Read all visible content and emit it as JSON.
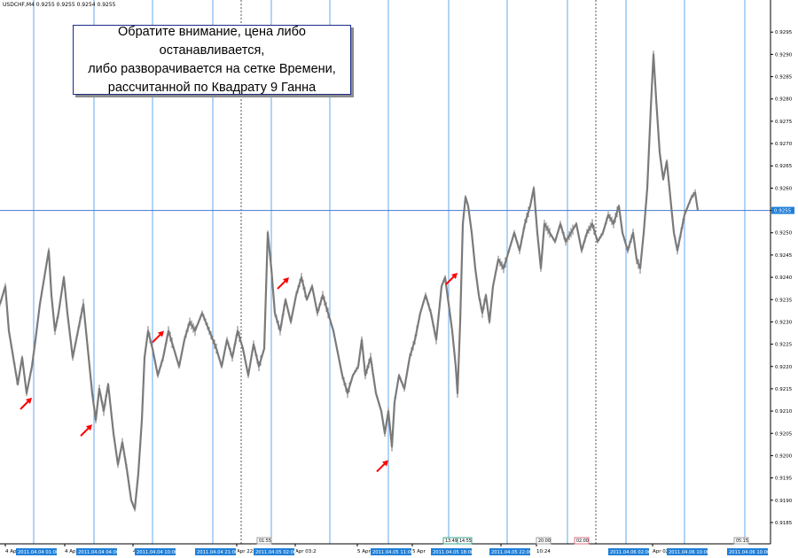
{
  "symbol_header": "USDCHF,M4 0.9255 0.9255 0.9254 0.9255",
  "annotation": {
    "text": "Обратите внимание, цена либо останавливается,\nлибо разворачивается на сетке Времени,\nрассчитанной по Квадрату 9 Ганна"
  },
  "colors": {
    "price_line": "#7a7a7a",
    "time_grid_line": "#66aaee",
    "current_price_line": "#4477cc",
    "day_separator": "#555555",
    "arrow": "#ff0000",
    "axis_label_bg": "#1f7fd8"
  },
  "chart_data": {
    "type": "line",
    "title": "",
    "ylim": [
      0.9183,
      0.9302
    ],
    "y_ticks": [
      "0.9295",
      "0.9290",
      "0.9285",
      "0.9280",
      "0.9275",
      "0.9270",
      "0.9265",
      "0.9260",
      "0.9255",
      "0.9250",
      "0.9245",
      "0.9240",
      "0.9235",
      "0.9230",
      "0.9225",
      "0.9220",
      "0.9215",
      "0.9210",
      "0.9205",
      "0.9200",
      "0.9195",
      "0.9190",
      "0.9185"
    ],
    "current_price": "0.9255",
    "x_ticks": [
      "4 Apr",
      "4 Apr 04:24",
      "4 Apr 09:00",
      "Apr 22:56",
      "Apr 03:2",
      "5 Apr 08:00",
      "5 Apr",
      "5 A",
      "10:24",
      "Apr 02:56"
    ],
    "time_grid_labels": [
      "2011.04.04 01:00",
      "2011.04.04 04:00",
      "2011.04.04 10:00",
      "2011.04.04 21:00",
      "2011.04.05 02:00",
      "2011.04.05 11:00",
      "2011.04.05 18:00",
      "2011.04.05 22:00",
      "2011.04.06 02:00",
      "2011.04.06 10:00",
      "2011.04.06 10:00"
    ],
    "time_grid_x": [
      38,
      106,
      172,
      240,
      306,
      372,
      438,
      506,
      572,
      640,
      706,
      772,
      840
    ],
    "day_separator_x": [
      272,
      672
    ],
    "time_markers": [
      {
        "label": "01:55",
        "color": "#9c9c9c"
      },
      {
        "label": "13:49",
        "color": "#3aa88c"
      },
      {
        "label": "14:55",
        "color": "#3aa88c"
      },
      {
        "label": "20:00",
        "color": "#9c9c9c"
      },
      {
        "label": "02:00",
        "color": "#e07080"
      },
      {
        "label": "05:15",
        "color": "#9c9c9c"
      }
    ],
    "series": [
      {
        "points": [
          [
            0,
            0.9234
          ],
          [
            6,
            0.9238
          ],
          [
            10,
            0.9228
          ],
          [
            15,
            0.9222
          ],
          [
            20,
            0.9216
          ],
          [
            25,
            0.9222
          ],
          [
            30,
            0.9214
          ],
          [
            36,
            0.922
          ],
          [
            40,
            0.9226
          ],
          [
            45,
            0.9234
          ],
          [
            50,
            0.924
          ],
          [
            55,
            0.9246
          ],
          [
            58,
            0.9236
          ],
          [
            62,
            0.9228
          ],
          [
            66,
            0.9232
          ],
          [
            72,
            0.924
          ],
          [
            76,
            0.9232
          ],
          [
            82,
            0.9222
          ],
          [
            88,
            0.9228
          ],
          [
            94,
            0.9234
          ],
          [
            100,
            0.9222
          ],
          [
            104,
            0.9214
          ],
          [
            108,
            0.9208
          ],
          [
            112,
            0.9215
          ],
          [
            117,
            0.921
          ],
          [
            122,
            0.9216
          ],
          [
            128,
            0.9205
          ],
          [
            133,
            0.9198
          ],
          [
            138,
            0.9203
          ],
          [
            143,
            0.9197
          ],
          [
            148,
            0.919
          ],
          [
            152,
            0.9188
          ],
          [
            156,
            0.9196
          ],
          [
            160,
            0.9208
          ],
          [
            163,
            0.9222
          ],
          [
            167,
            0.9228
          ],
          [
            172,
            0.9224
          ],
          [
            178,
            0.9218
          ],
          [
            184,
            0.9222
          ],
          [
            190,
            0.9228
          ],
          [
            196,
            0.9224
          ],
          [
            202,
            0.922
          ],
          [
            208,
            0.9226
          ],
          [
            214,
            0.923
          ],
          [
            220,
            0.9228
          ],
          [
            228,
            0.9232
          ],
          [
            236,
            0.9228
          ],
          [
            244,
            0.9224
          ],
          [
            250,
            0.922
          ],
          [
            256,
            0.9226
          ],
          [
            262,
            0.9222
          ],
          [
            268,
            0.9228
          ],
          [
            274,
            0.9224
          ],
          [
            280,
            0.9218
          ],
          [
            286,
            0.9225
          ],
          [
            292,
            0.922
          ],
          [
            298,
            0.9224
          ],
          [
            302,
            0.925
          ],
          [
            306,
            0.9242
          ],
          [
            310,
            0.9232
          ],
          [
            316,
            0.9228
          ],
          [
            322,
            0.9235
          ],
          [
            328,
            0.923
          ],
          [
            334,
            0.9236
          ],
          [
            340,
            0.924
          ],
          [
            346,
            0.9235
          ],
          [
            352,
            0.9238
          ],
          [
            358,
            0.9232
          ],
          [
            364,
            0.9236
          ],
          [
            370,
            0.9232
          ],
          [
            376,
            0.9228
          ],
          [
            380,
            0.9224
          ],
          [
            386,
            0.9218
          ],
          [
            392,
            0.9214
          ],
          [
            398,
            0.9218
          ],
          [
            404,
            0.922
          ],
          [
            408,
            0.9226
          ],
          [
            412,
            0.9218
          ],
          [
            418,
            0.9222
          ],
          [
            424,
            0.9214
          ],
          [
            430,
            0.921
          ],
          [
            434,
            0.9205
          ],
          [
            438,
            0.921
          ],
          [
            442,
            0.9202
          ],
          [
            445,
            0.9212
          ],
          [
            450,
            0.9218
          ],
          [
            456,
            0.9215
          ],
          [
            462,
            0.9222
          ],
          [
            468,
            0.9226
          ],
          [
            474,
            0.9232
          ],
          [
            480,
            0.9236
          ],
          [
            486,
            0.9232
          ],
          [
            492,
            0.9226
          ],
          [
            498,
            0.9238
          ],
          [
            502,
            0.924
          ],
          [
            506,
            0.9234
          ],
          [
            510,
            0.9228
          ],
          [
            514,
            0.922
          ],
          [
            516,
            0.9214
          ],
          [
            519,
            0.923
          ],
          [
            522,
            0.9252
          ],
          [
            525,
            0.9258
          ],
          [
            528,
            0.9256
          ],
          [
            532,
            0.925
          ],
          [
            536,
            0.9242
          ],
          [
            540,
            0.9236
          ],
          [
            544,
            0.9232
          ],
          [
            548,
            0.9236
          ],
          [
            552,
            0.923
          ],
          [
            556,
            0.9238
          ],
          [
            562,
            0.9244
          ],
          [
            568,
            0.9242
          ],
          [
            574,
            0.9246
          ],
          [
            580,
            0.925
          ],
          [
            586,
            0.9246
          ],
          [
            592,
            0.9252
          ],
          [
            598,
            0.9256
          ],
          [
            602,
            0.926
          ],
          [
            606,
            0.925
          ],
          [
            610,
            0.9242
          ],
          [
            614,
            0.9252
          ],
          [
            620,
            0.925
          ],
          [
            626,
            0.9248
          ],
          [
            632,
            0.9252
          ],
          [
            638,
            0.9248
          ],
          [
            644,
            0.925
          ],
          [
            650,
            0.9252
          ],
          [
            656,
            0.9246
          ],
          [
            662,
            0.925
          ],
          [
            668,
            0.9252
          ],
          [
            674,
            0.9248
          ],
          [
            680,
            0.925
          ],
          [
            686,
            0.9254
          ],
          [
            692,
            0.9252
          ],
          [
            698,
            0.9256
          ],
          [
            702,
            0.925
          ],
          [
            708,
            0.9246
          ],
          [
            714,
            0.925
          ],
          [
            718,
            0.9244
          ],
          [
            722,
            0.9242
          ],
          [
            726,
            0.925
          ],
          [
            730,
            0.926
          ],
          [
            734,
            0.9278
          ],
          [
            737,
            0.929
          ],
          [
            740,
            0.928
          ],
          [
            744,
            0.9268
          ],
          [
            748,
            0.9262
          ],
          [
            752,
            0.9266
          ],
          [
            756,
            0.9258
          ],
          [
            760,
            0.925
          ],
          [
            764,
            0.9246
          ],
          [
            768,
            0.925
          ],
          [
            772,
            0.9254
          ],
          [
            776,
            0.9256
          ],
          [
            780,
            0.9258
          ],
          [
            784,
            0.9259
          ],
          [
            787,
            0.9255
          ]
        ]
      }
    ],
    "arrows": [
      {
        "x": 22,
        "y": 0.9213
      },
      {
        "x": 90,
        "y": 0.9207
      },
      {
        "x": 171,
        "y": 0.9228
      },
      {
        "x": 312,
        "y": 0.924
      },
      {
        "x": 424,
        "y": 0.9199
      },
      {
        "x": 502,
        "y": 0.9241
      }
    ]
  }
}
